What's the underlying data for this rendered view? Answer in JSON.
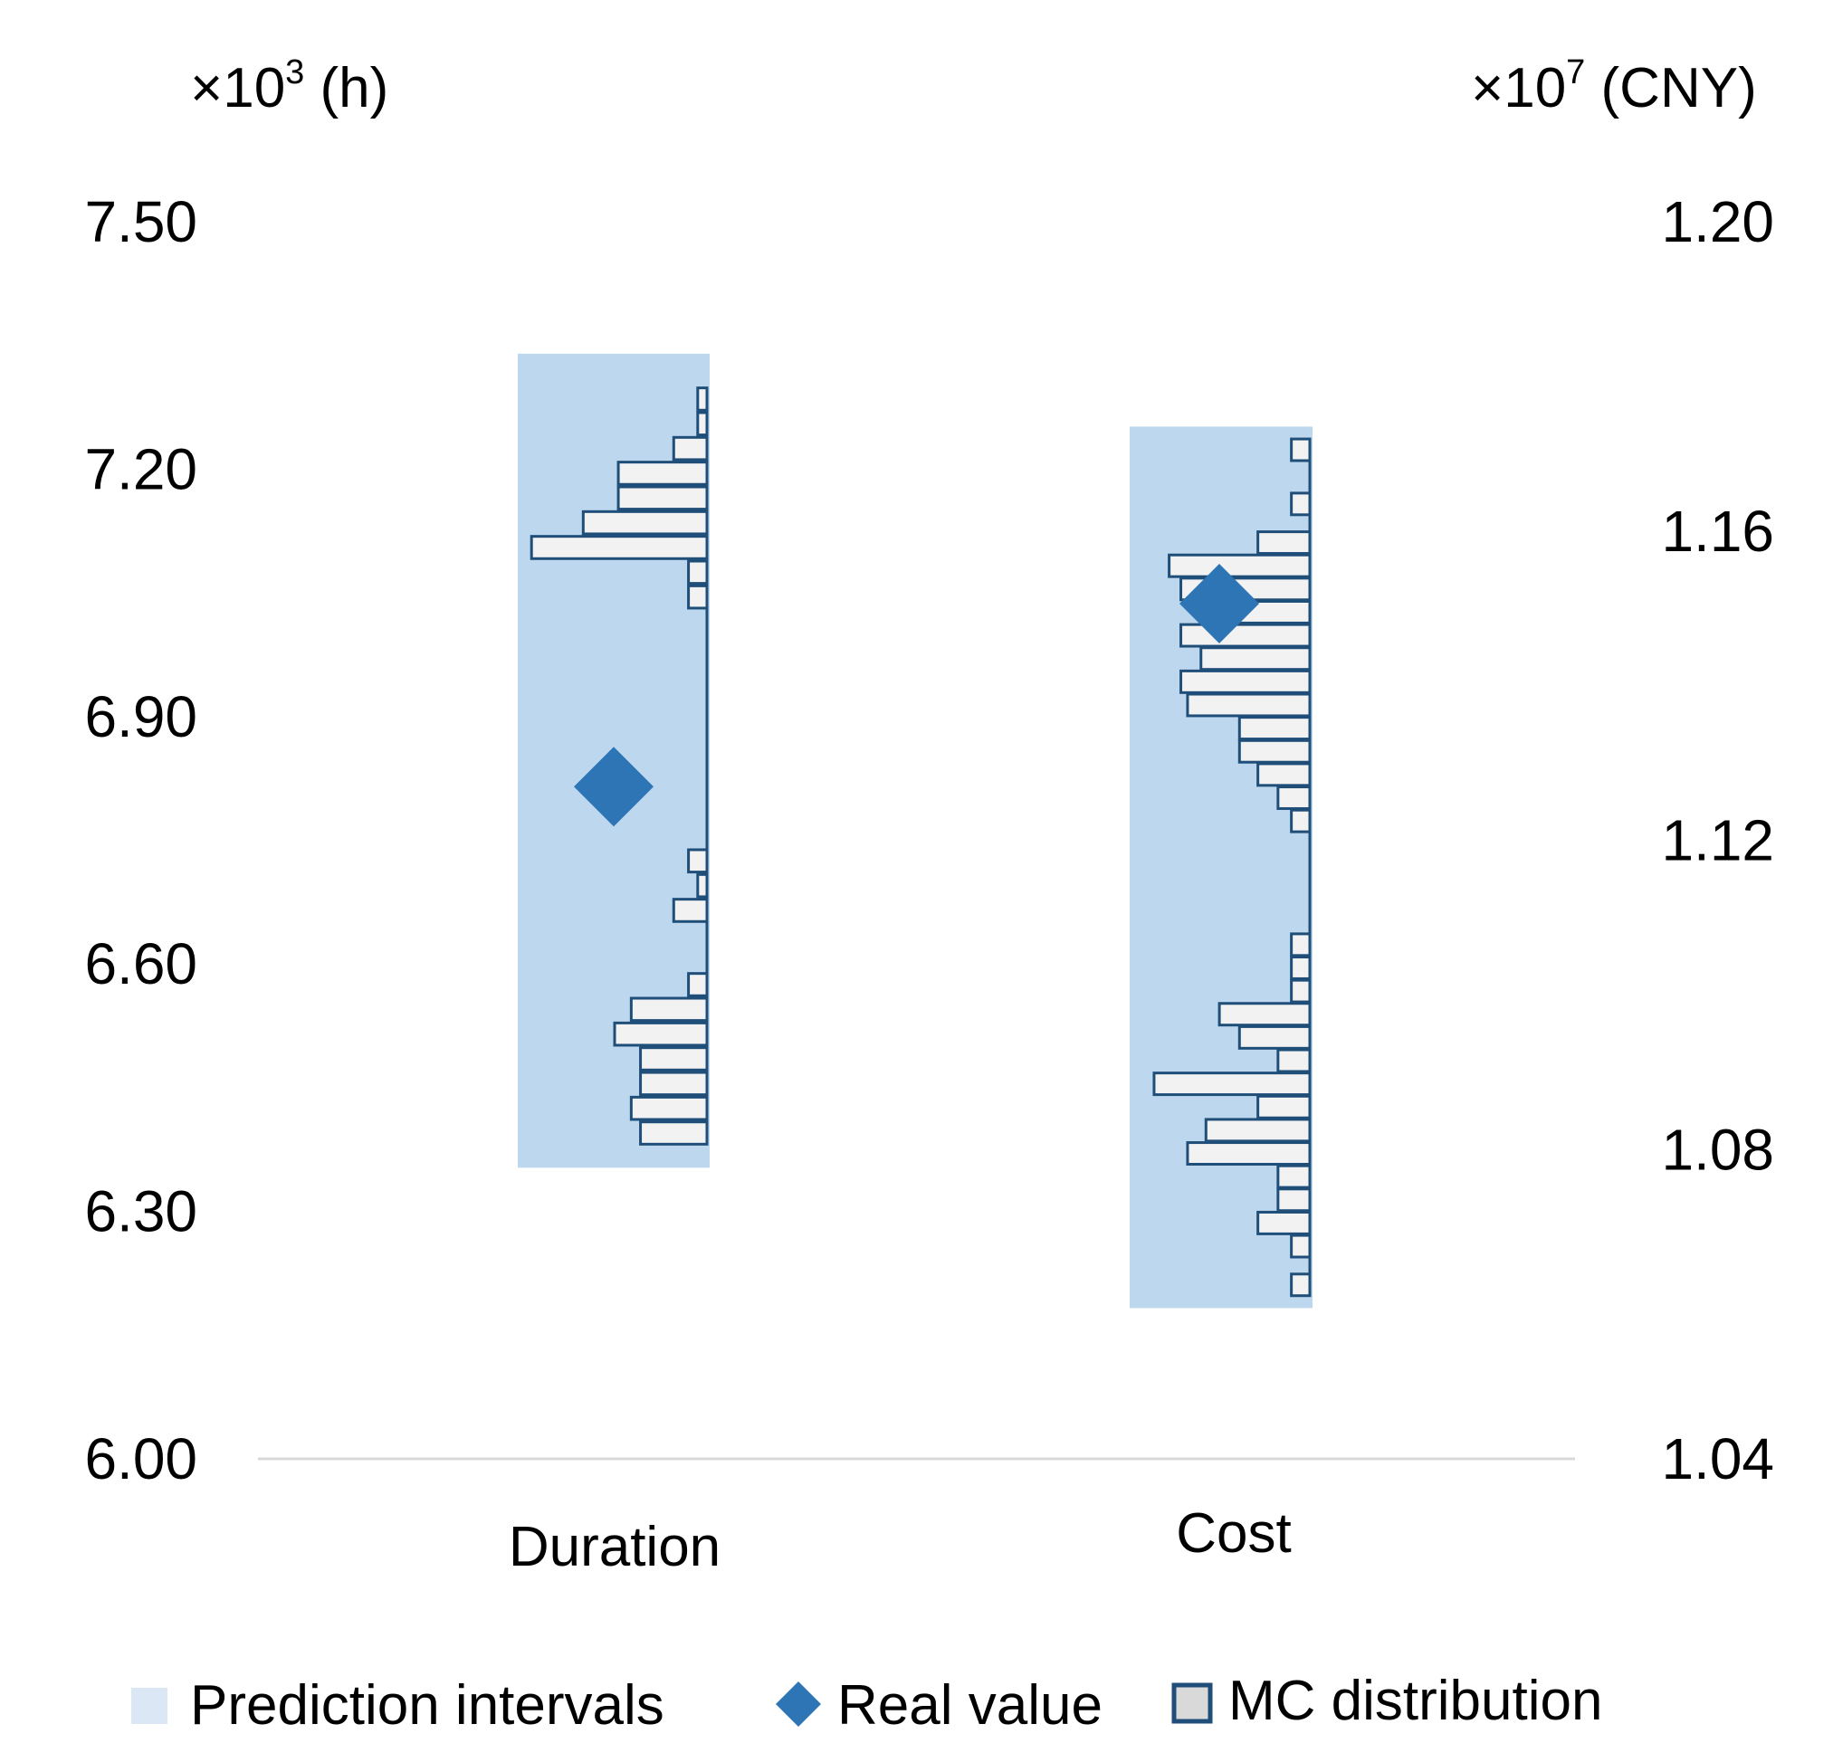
{
  "chart_data": {
    "type": "bar",
    "categories": [
      "Duration",
      "Cost"
    ],
    "axes": {
      "left": {
        "unit_prefix": "×10",
        "unit_exp": "3",
        "unit_suffix": " (h)",
        "ticks": [
          "6.00",
          "6.30",
          "6.60",
          "6.90",
          "7.20",
          "7.50"
        ],
        "range": [
          6.0,
          7.5
        ]
      },
      "right": {
        "unit_prefix": "×10",
        "unit_exp": "7",
        "unit_suffix": " (CNY)",
        "ticks": [
          "1.04",
          "1.08",
          "1.12",
          "1.16",
          "1.20"
        ],
        "range": [
          1.04,
          1.2
        ]
      }
    },
    "series": [
      {
        "name": "Duration",
        "axis": "left",
        "prediction_interval": [
          6.353,
          7.34
        ],
        "real_value": 6.815,
        "mc_distribution": {
          "bin_width": 0.027,
          "bins": [
            {
              "center": 6.395,
              "rel": 0.36
            },
            {
              "center": 6.425,
              "rel": 0.41
            },
            {
              "center": 6.455,
              "rel": 0.36
            },
            {
              "center": 6.485,
              "rel": 0.36
            },
            {
              "center": 6.515,
              "rel": 0.5
            },
            {
              "center": 6.545,
              "rel": 0.41
            },
            {
              "center": 6.575,
              "rel": 0.1
            },
            {
              "center": 6.665,
              "rel": 0.18
            },
            {
              "center": 6.695,
              "rel": 0.05
            },
            {
              "center": 6.725,
              "rel": 0.1
            },
            {
              "center": 7.045,
              "rel": 0.1
            },
            {
              "center": 7.075,
              "rel": 0.1
            },
            {
              "center": 7.105,
              "rel": 0.95
            },
            {
              "center": 7.135,
              "rel": 0.67
            },
            {
              "center": 7.165,
              "rel": 0.48
            },
            {
              "center": 7.195,
              "rel": 0.48
            },
            {
              "center": 7.225,
              "rel": 0.18
            },
            {
              "center": 7.255,
              "rel": 0.05
            },
            {
              "center": 7.285,
              "rel": 0.05
            }
          ]
        }
      },
      {
        "name": "Cost",
        "axis": "right",
        "prediction_interval": [
          1.0595,
          1.1735
        ],
        "real_value": 1.1506,
        "mc_distribution": {
          "bin_width": 0.0028,
          "bins": [
            {
              "center": 1.0625,
              "rel": 0.11
            },
            {
              "center": 1.0675,
              "rel": 0.11
            },
            {
              "center": 1.0705,
              "rel": 0.31
            },
            {
              "center": 1.0735,
              "rel": 0.19
            },
            {
              "center": 1.0765,
              "rel": 0.19
            },
            {
              "center": 1.0795,
              "rel": 0.73
            },
            {
              "center": 1.0825,
              "rel": 0.62
            },
            {
              "center": 1.0855,
              "rel": 0.31
            },
            {
              "center": 1.0885,
              "rel": 0.93
            },
            {
              "center": 1.0915,
              "rel": 0.19
            },
            {
              "center": 1.0945,
              "rel": 0.42
            },
            {
              "center": 1.0975,
              "rel": 0.54
            },
            {
              "center": 1.1005,
              "rel": 0.11
            },
            {
              "center": 1.1035,
              "rel": 0.11
            },
            {
              "center": 1.1065,
              "rel": 0.11
            },
            {
              "center": 1.1225,
              "rel": 0.11
            },
            {
              "center": 1.1255,
              "rel": 0.19
            },
            {
              "center": 1.1285,
              "rel": 0.31
            },
            {
              "center": 1.1315,
              "rel": 0.42
            },
            {
              "center": 1.1345,
              "rel": 0.42
            },
            {
              "center": 1.1375,
              "rel": 0.73
            },
            {
              "center": 1.1405,
              "rel": 0.77
            },
            {
              "center": 1.1435,
              "rel": 0.65
            },
            {
              "center": 1.1465,
              "rel": 0.77
            },
            {
              "center": 1.1495,
              "rel": 0.62
            },
            {
              "center": 1.1525,
              "rel": 0.77
            },
            {
              "center": 1.1555,
              "rel": 0.84
            },
            {
              "center": 1.1585,
              "rel": 0.31
            },
            {
              "center": 1.1635,
              "rel": 0.11
            },
            {
              "center": 1.1705,
              "rel": 0.11
            }
          ]
        }
      }
    ],
    "legend": [
      {
        "label": "Prediction intervals",
        "marker": "square",
        "color": "#dbe7f5"
      },
      {
        "label": "Real value",
        "marker": "diamond",
        "color": "#2e75b6"
      },
      {
        "label": "MC distribution",
        "marker": "hollow-square",
        "color": "#1f4e79"
      }
    ],
    "legend_position": "bottom",
    "colors": {
      "interval": "#bdd7ee",
      "diamond": "#2e75b6",
      "bar_fill": "#f2f2f2",
      "bar_stroke": "#1f4e79",
      "axis_line": "#d9d9d9"
    }
  }
}
